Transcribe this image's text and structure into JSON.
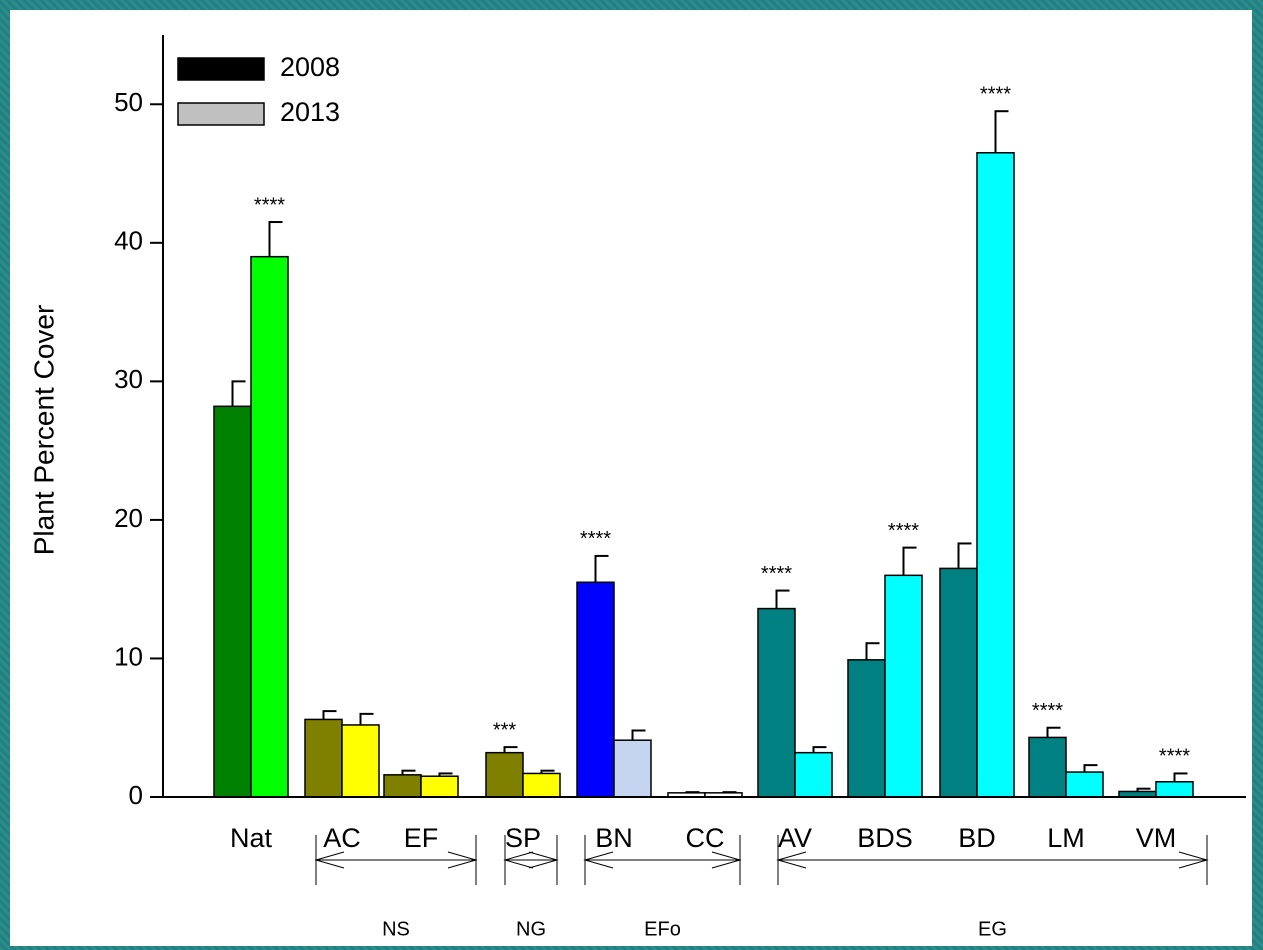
{
  "chart_data": {
    "type": "bar",
    "ylabel": "Plant Percent Cover",
    "categories": [
      "Nat",
      "AC",
      "EF",
      "SP",
      "BN",
      "CC",
      "AV",
      "BDS",
      "BD",
      "LM",
      "VM"
    ],
    "series": [
      {
        "name": "2008",
        "color": "#000000",
        "colors": [
          "#008000",
          "#808000",
          "#808000",
          "#808000",
          "#0000ff",
          "#ffffff",
          "#008080",
          "#008080",
          "#008080",
          "#008080",
          "#008080"
        ],
        "values": [
          28.2,
          5.6,
          1.6,
          3.2,
          15.5,
          0.3,
          13.6,
          9.9,
          16.5,
          4.3,
          0.4
        ],
        "errors": [
          1.8,
          0.6,
          0.3,
          0.4,
          1.9,
          0.05,
          1.3,
          1.2,
          1.8,
          0.7,
          0.2
        ],
        "labels": [
          null,
          null,
          null,
          "***",
          "****",
          null,
          "****",
          null,
          null,
          "****",
          null
        ]
      },
      {
        "name": "2013",
        "color": "#c0c0c0",
        "colors": [
          "#00ff00",
          "#ffff00",
          "#ffff00",
          "#ffff00",
          "#c5d5f0",
          "#ffffff",
          "#00ffff",
          "#00ffff",
          "#00ffff",
          "#00ffff",
          "#00ffff"
        ],
        "values": [
          39.0,
          5.2,
          1.5,
          1.7,
          4.1,
          0.3,
          3.2,
          16.0,
          46.5,
          1.8,
          1.1
        ],
        "errors": [
          2.5,
          0.8,
          0.2,
          0.2,
          0.7,
          0.05,
          0.4,
          2.0,
          3.0,
          0.5,
          0.6
        ],
        "labels": [
          "****",
          null,
          null,
          null,
          null,
          null,
          null,
          "****",
          "****",
          null,
          "****"
        ]
      }
    ],
    "groups": [
      "NS",
      "NG",
      "EFo",
      "EG"
    ],
    "ylim": [
      0,
      55
    ],
    "yticks": [
      0,
      10,
      20,
      30,
      40,
      50
    ],
    "legend": "upper left"
  }
}
